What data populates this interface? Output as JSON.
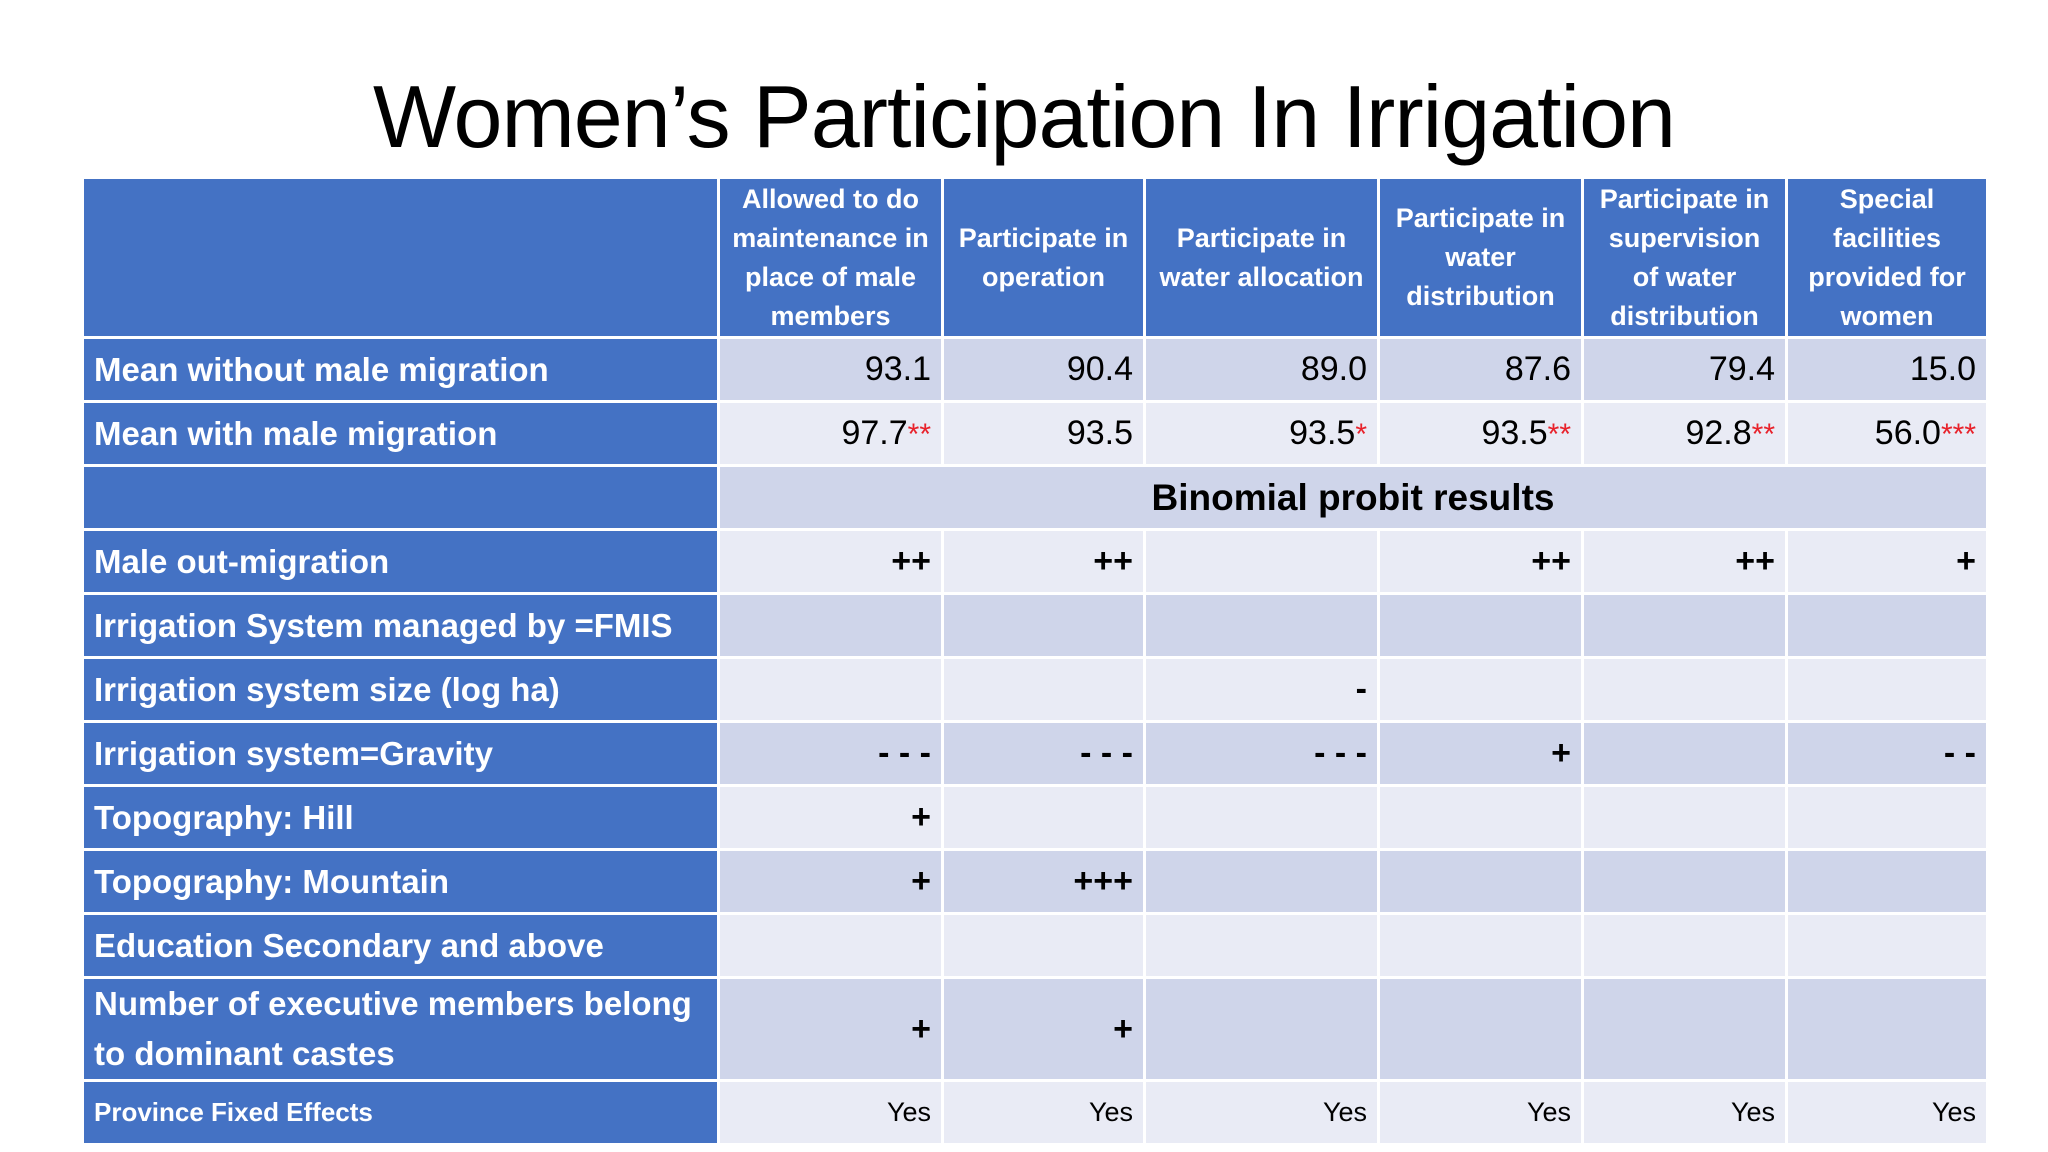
{
  "title": "Women’s Participation In Irrigation",
  "table": {
    "columns": [
      "Allowed to do maintenance in place of male members",
      "Participate in operation",
      "Participate in water allocation",
      "Participate in water distribution",
      "Participate in supervision of water distribution",
      "Special facilities provided for women"
    ],
    "means": [
      {
        "label": "Mean without male migration",
        "values": [
          {
            "v": "93.1",
            "s": ""
          },
          {
            "v": "90.4",
            "s": ""
          },
          {
            "v": "89.0",
            "s": ""
          },
          {
            "v": "87.6",
            "s": ""
          },
          {
            "v": "79.4",
            "s": ""
          },
          {
            "v": "15.0",
            "s": ""
          }
        ]
      },
      {
        "label": "Mean with male migration",
        "values": [
          {
            "v": "97.7",
            "s": "**"
          },
          {
            "v": "93.5",
            "s": ""
          },
          {
            "v": "93.5",
            "s": "*"
          },
          {
            "v": "93.5",
            "s": "**"
          },
          {
            "v": "92.8",
            "s": "**"
          },
          {
            "v": "56.0",
            "s": "***"
          }
        ]
      }
    ],
    "section_label": "Binomial probit results",
    "rows": [
      {
        "label": "Male out-migration",
        "values": [
          "++",
          "++",
          "",
          "++",
          "++",
          "+"
        ]
      },
      {
        "label": "Irrigation System managed by =FMIS",
        "values": [
          "",
          "",
          "",
          "",
          "",
          ""
        ]
      },
      {
        "label": "Irrigation system size (log ha)",
        "values": [
          "",
          "",
          "-",
          "",
          "",
          ""
        ]
      },
      {
        "label": "Irrigation system=Gravity",
        "values": [
          "- - -",
          "- - -",
          "- - -",
          "+",
          "",
          "- -"
        ]
      },
      {
        "label": "Topography:  Hill",
        "values": [
          "+",
          "",
          "",
          "",
          "",
          ""
        ]
      },
      {
        "label": "Topography:  Mountain",
        "values": [
          "+",
          "+++",
          "",
          "",
          "",
          ""
        ]
      },
      {
        "label": "Education Secondary and above",
        "values": [
          "",
          "",
          "",
          "",
          "",
          ""
        ]
      },
      {
        "label": "Number of executive members belong to dominant castes",
        "values": [
          "+",
          "+",
          "",
          "",
          "",
          ""
        ]
      }
    ],
    "fixed_effects": {
      "label": "Province Fixed Effects",
      "values": [
        "Yes",
        "Yes",
        "Yes",
        "Yes",
        "Yes",
        "Yes"
      ]
    }
  }
}
